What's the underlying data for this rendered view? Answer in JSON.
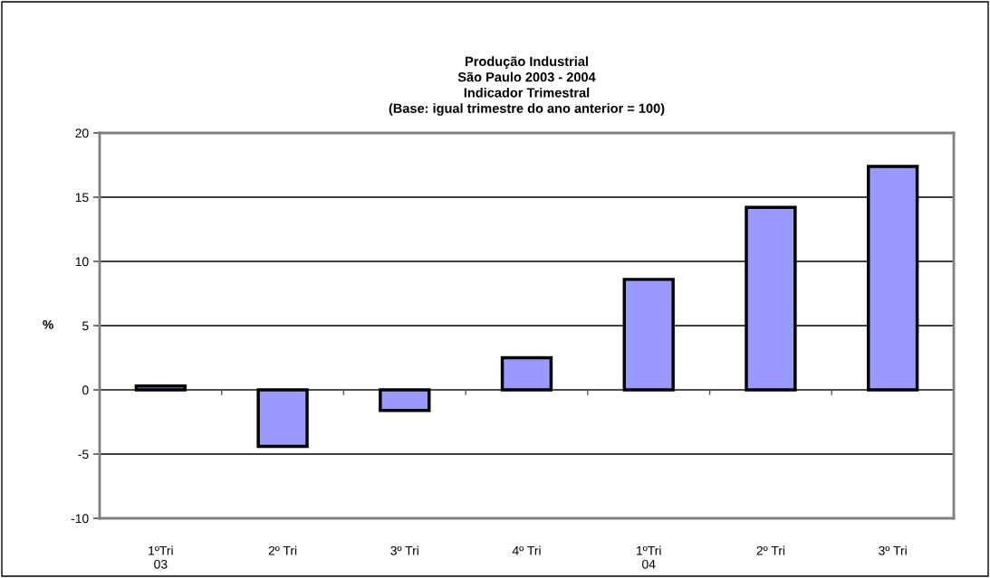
{
  "chart_data": {
    "type": "bar",
    "title": "Produção Industrial\nSão Paulo 2003 - 2004\nIndicador Trimestral\n(Base: igual trimestre do ano anterior = 100)",
    "ylabel": "%",
    "categories": [
      "1ºTri\n03",
      "2º Tri",
      "3º Tri",
      "4º Tri",
      "1ºTri\n04",
      "2º Tri",
      "3º Tri"
    ],
    "values": [
      0.3,
      -4.4,
      -1.6,
      2.5,
      8.6,
      14.2,
      17.4
    ],
    "color": "#9999ff",
    "ylim": [
      -10,
      20
    ],
    "yticks": [
      -10,
      -5,
      0,
      5,
      10,
      15,
      20
    ],
    "grid": "y",
    "legend": false
  }
}
